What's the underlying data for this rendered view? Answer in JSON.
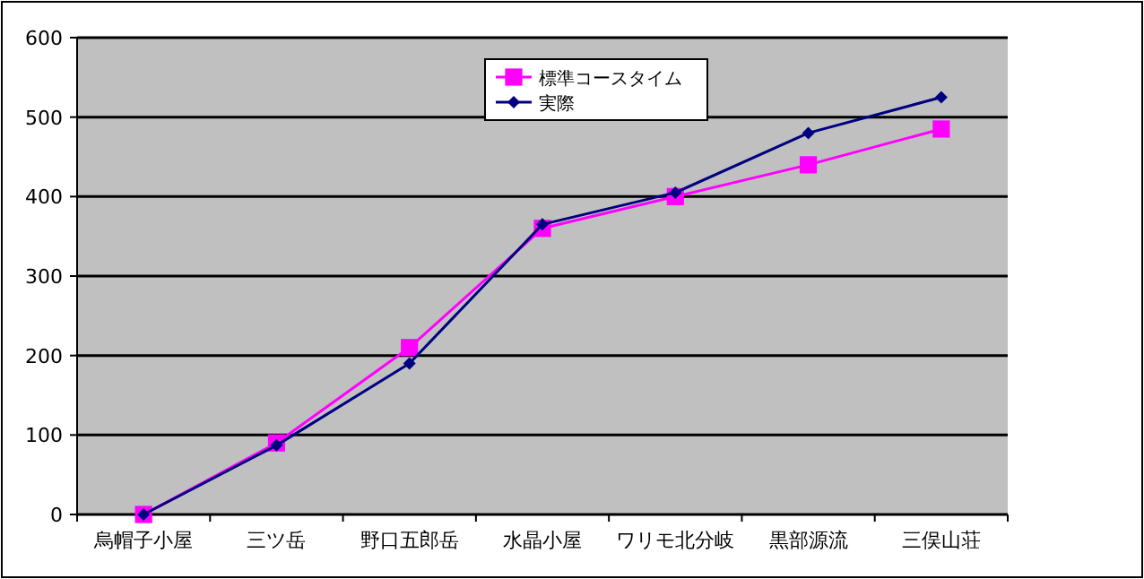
{
  "chart_data": {
    "type": "line",
    "categories": [
      "烏帽子小屋",
      "三ツ岳",
      "野口五郎岳",
      "水晶小屋",
      "ワリモ北分岐",
      "黒部源流",
      "三俣山荘"
    ],
    "series": [
      {
        "name": "標準コースタイム",
        "color": "#ff00ff",
        "marker": "square",
        "values": [
          0,
          90,
          210,
          360,
          400,
          440,
          485
        ]
      },
      {
        "name": "実際",
        "color": "#000080",
        "marker": "diamond",
        "values": [
          0,
          87,
          190,
          365,
          405,
          480,
          525
        ]
      }
    ],
    "ylim": [
      0,
      600
    ],
    "yticks": [
      0,
      100,
      200,
      300,
      400,
      500,
      600
    ],
    "grid": "y",
    "legend": "top"
  }
}
